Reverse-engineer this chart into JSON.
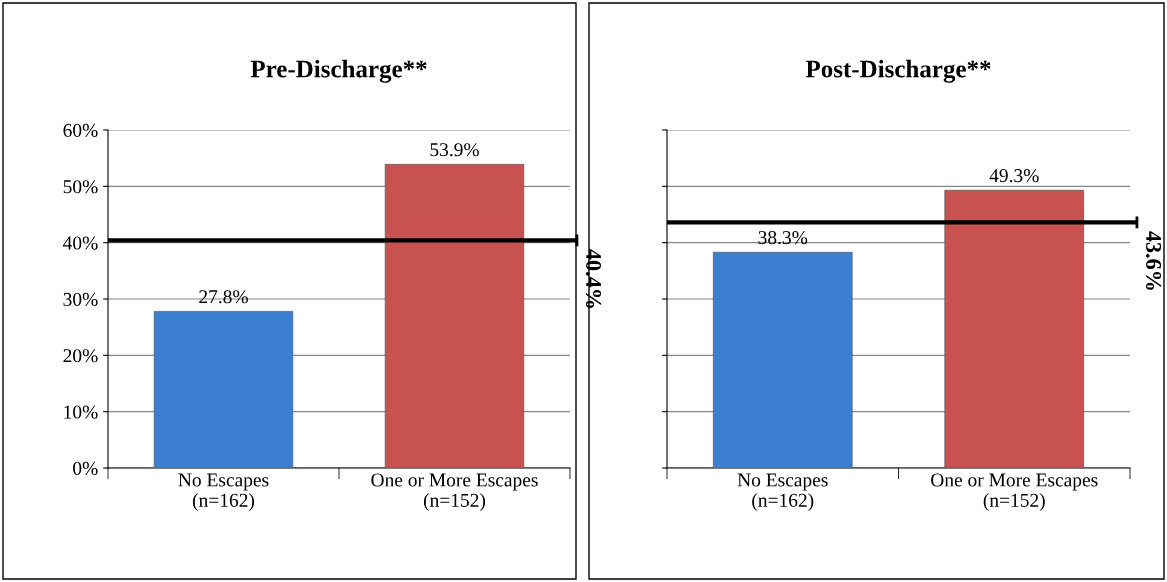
{
  "chart_data": [
    {
      "type": "bar",
      "title": "Pre-Discharge**",
      "categories": [
        "No Escapes\n(n=162)",
        "One or More Escapes\n(n=152)"
      ],
      "values": [
        27.8,
        53.9
      ],
      "colors": [
        "#3c7fd0",
        "#c8524f"
      ],
      "value_labels": [
        "27.8%",
        "53.9%"
      ],
      "ylim": [
        0,
        60
      ],
      "yticks": [
        {
          "value": 0,
          "label": "0%"
        },
        {
          "value": 10,
          "label": "10%"
        },
        {
          "value": 20,
          "label": "20%"
        },
        {
          "value": 30,
          "label": "30%"
        },
        {
          "value": 40,
          "label": "40%"
        },
        {
          "value": 50,
          "label": "50%"
        },
        {
          "value": 60,
          "label": "60%"
        }
      ],
      "grid": "y",
      "ref_lines": [
        {
          "axis": "y",
          "value": 40.4,
          "label": "40.4%",
          "color": "#000000"
        }
      ]
    },
    {
      "type": "bar",
      "title": "Post-Discharge**",
      "categories": [
        "No Escapes\n(n=162)",
        "One or More Escapes\n(n=152)"
      ],
      "values": [
        38.3,
        49.3
      ],
      "colors": [
        "#3c7fd0",
        "#c8524f"
      ],
      "value_labels": [
        "38.3%",
        "49.3%"
      ],
      "ylim": [
        0,
        60
      ],
      "yticks": [
        {
          "value": 0,
          "label": null
        },
        {
          "value": 10,
          "label": null
        },
        {
          "value": 20,
          "label": null
        },
        {
          "value": 30,
          "label": null
        },
        {
          "value": 40,
          "label": null
        },
        {
          "value": 50,
          "label": null
        },
        {
          "value": 60,
          "label": null
        }
      ],
      "grid": "y",
      "tick_labels": "x",
      "ref_lines": [
        {
          "axis": "y",
          "value": 43.6,
          "label": "43.6%",
          "color": "#000000"
        }
      ]
    }
  ]
}
